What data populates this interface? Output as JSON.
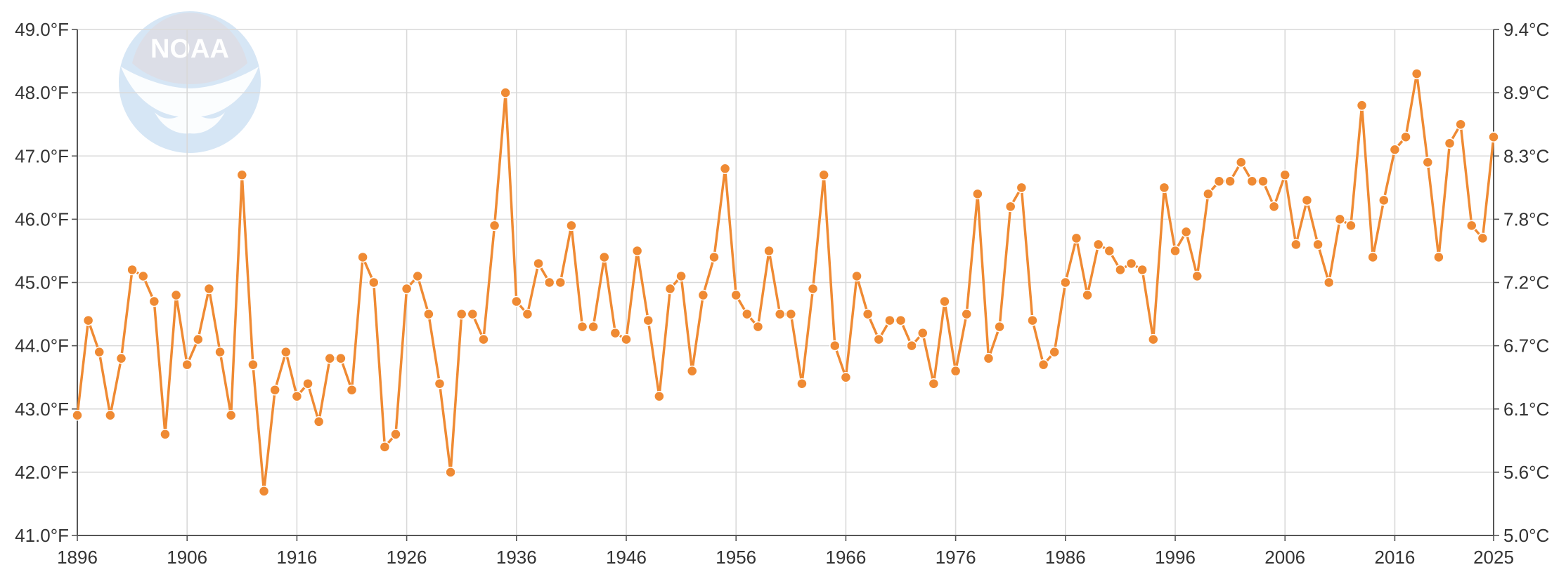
{
  "chart_data": {
    "type": "line",
    "title": "",
    "xlabel": "",
    "ylabel": "",
    "logo_text": "NOAA",
    "x_ticks": [
      "1896",
      "1906",
      "1916",
      "1926",
      "1936",
      "1946",
      "1956",
      "1966",
      "1976",
      "1986",
      "1996",
      "2006",
      "2016",
      "2025"
    ],
    "y_left_ticks": [
      "49.0°F",
      "48.0°F",
      "47.0°F",
      "46.0°F",
      "45.0°F",
      "44.0°F",
      "43.0°F",
      "42.0°F",
      "41.0°F"
    ],
    "y_right_ticks": [
      "9.4°C",
      "8.9°C",
      "8.3°C",
      "7.8°C",
      "7.2°C",
      "6.7°C",
      "6.1°C",
      "5.6°C",
      "5.0°C"
    ],
    "xlim": [
      1896,
      2025
    ],
    "ylim": [
      41,
      49
    ],
    "grid": true,
    "colors": {
      "series": "#ef8a33",
      "grid": "#d9d9d9",
      "axis": "#555555",
      "text": "#333333",
      "logo": "#d6e6f5"
    },
    "series": [
      {
        "x": [
          1896,
          1897,
          1898,
          1899,
          1900,
          1901,
          1902,
          1903,
          1904,
          1905,
          1906,
          1907,
          1908,
          1909,
          1910,
          1911,
          1912,
          1913,
          1914,
          1915,
          1916,
          1917,
          1918,
          1919,
          1920,
          1921,
          1922,
          1923,
          1924,
          1925,
          1926,
          1927,
          1928,
          1929,
          1930,
          1931,
          1932,
          1933,
          1934,
          1935,
          1936,
          1937,
          1938,
          1939,
          1940,
          1941,
          1942,
          1943,
          1944,
          1945,
          1946,
          1947,
          1948,
          1949,
          1950,
          1951,
          1952,
          1953,
          1954,
          1955,
          1956,
          1957,
          1958,
          1959,
          1960,
          1961,
          1962,
          1963,
          1964,
          1965,
          1966,
          1967,
          1968,
          1969,
          1970,
          1971,
          1972,
          1973,
          1974,
          1975,
          1976,
          1977,
          1978,
          1979,
          1980,
          1981,
          1982,
          1983,
          1984,
          1985,
          1986,
          1987,
          1988,
          1989,
          1990,
          1991,
          1992,
          1993,
          1994,
          1995,
          1996,
          1997,
          1998,
          1999,
          2000,
          2001,
          2002,
          2003,
          2004,
          2005,
          2006,
          2007,
          2008,
          2009,
          2010,
          2011,
          2012,
          2013,
          2014,
          2015,
          2016,
          2017,
          2018,
          2019,
          2020,
          2021,
          2022,
          2023,
          2024,
          2025
        ],
        "values": [
          42.9,
          44.4,
          43.9,
          42.9,
          43.8,
          45.2,
          45.1,
          44.7,
          42.6,
          44.8,
          43.7,
          44.1,
          44.9,
          43.9,
          42.9,
          46.7,
          43.7,
          41.7,
          43.3,
          43.9,
          43.2,
          43.4,
          42.8,
          43.8,
          43.8,
          43.3,
          45.4,
          45.0,
          42.4,
          42.6,
          44.9,
          45.1,
          44.5,
          43.4,
          42.0,
          44.5,
          44.5,
          44.1,
          45.9,
          48.0,
          44.7,
          44.5,
          45.3,
          45.0,
          45.0,
          45.9,
          44.3,
          44.3,
          45.4,
          44.2,
          44.1,
          45.5,
          44.4,
          43.2,
          44.9,
          45.1,
          43.6,
          44.8,
          45.4,
          46.8,
          44.8,
          44.5,
          44.3,
          45.5,
          44.5,
          44.5,
          43.4,
          44.9,
          46.7,
          44.0,
          43.5,
          45.1,
          44.5,
          44.1,
          44.4,
          44.4,
          44.0,
          44.2,
          43.4,
          44.7,
          43.6,
          44.5,
          46.4,
          43.8,
          44.3,
          46.2,
          46.5,
          44.4,
          43.7,
          43.9,
          45.0,
          45.7,
          44.8,
          45.6,
          45.5,
          45.2,
          45.3,
          45.2,
          44.1,
          46.5,
          45.5,
          45.8,
          45.1,
          46.4,
          46.6,
          46.6,
          46.9,
          46.6,
          46.6,
          46.2,
          46.7,
          45.6,
          46.3,
          45.6,
          45.0,
          46.0,
          45.9,
          47.8,
          45.4,
          46.3,
          47.1,
          47.3,
          48.3,
          46.9,
          45.4,
          47.2,
          47.5,
          45.9,
          45.7,
          47.3
        ]
      }
    ]
  }
}
